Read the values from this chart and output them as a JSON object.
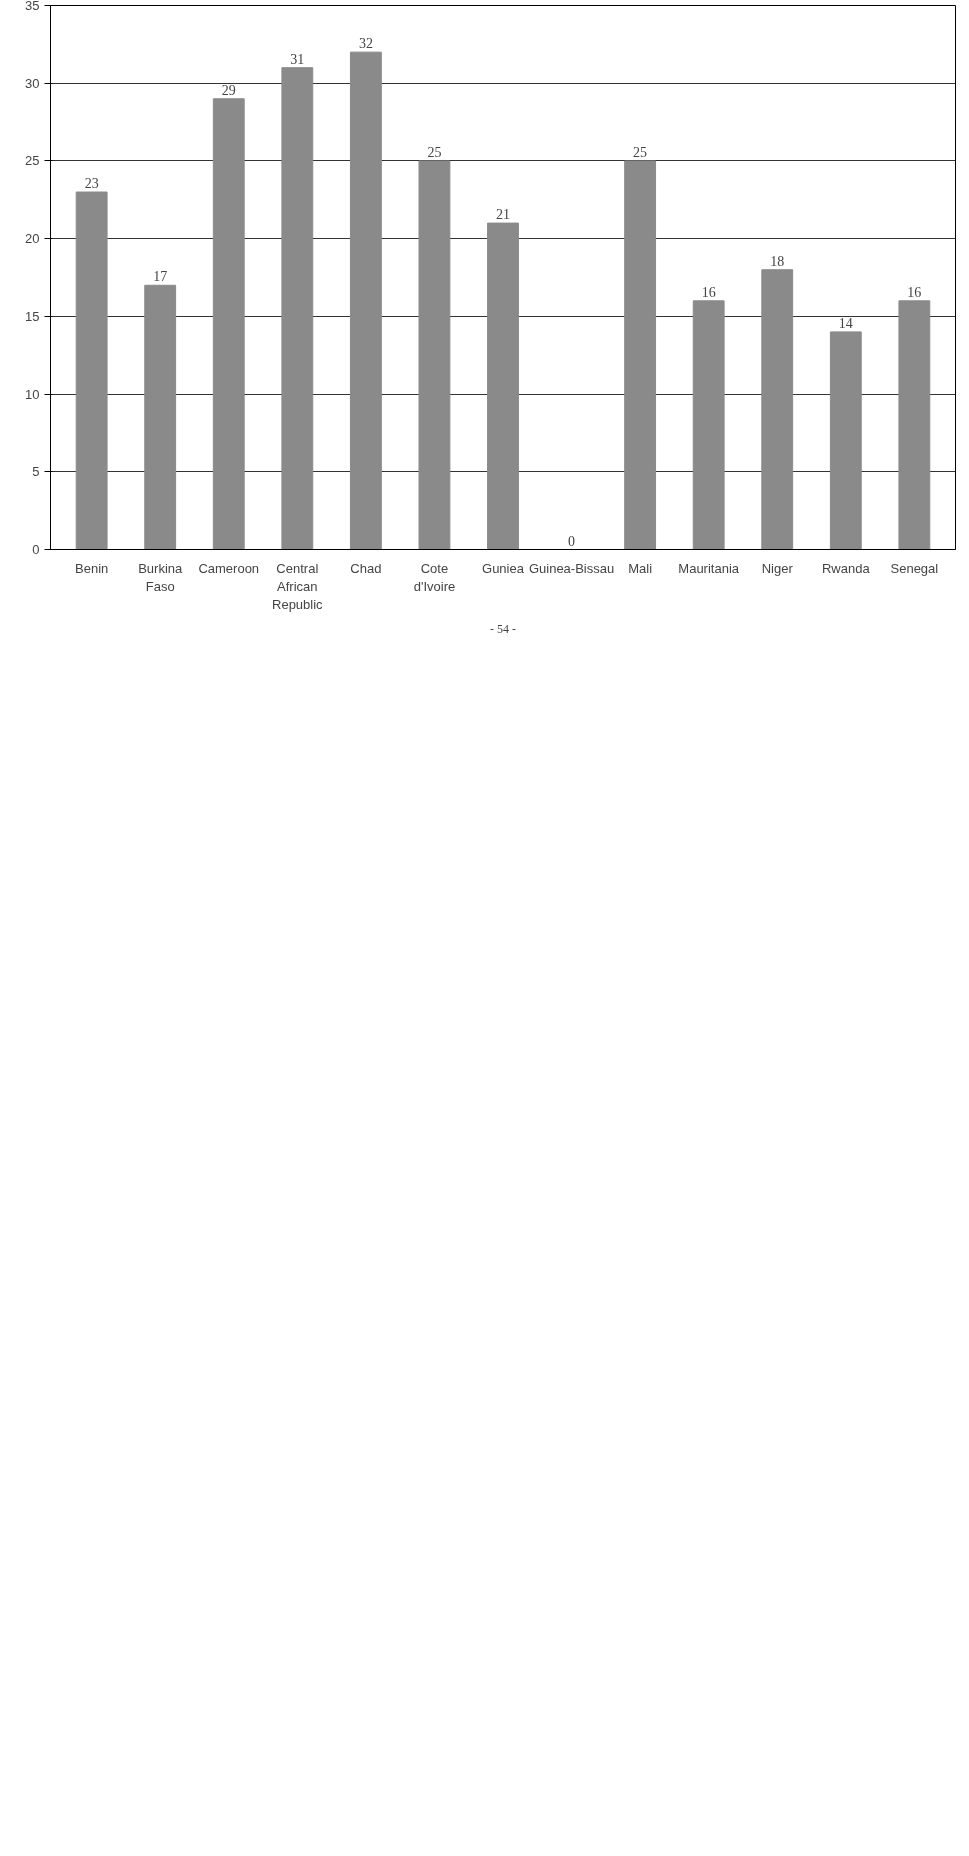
{
  "chart_data": {
    "type": "bar",
    "categories": [
      "Benin",
      "Burkina Faso",
      "Cameroon",
      "Central African Republic",
      "Chad",
      "Cote d'Ivoire",
      "Guniea",
      "Guinea-Bissau",
      "Mali",
      "Mauritania",
      "Niger",
      "Rwanda",
      "Senegal"
    ],
    "values": [
      23,
      17,
      29,
      31,
      32,
      25,
      21,
      0,
      25,
      16,
      18,
      14,
      16
    ],
    "color": "#8a8a8a",
    "ylim": [
      0,
      35
    ],
    "yticks": [
      0,
      5,
      10,
      15,
      20,
      25,
      30,
      35
    ],
    "grid": "y",
    "data_labels": true,
    "annotations": [
      "- 54 -"
    ]
  }
}
